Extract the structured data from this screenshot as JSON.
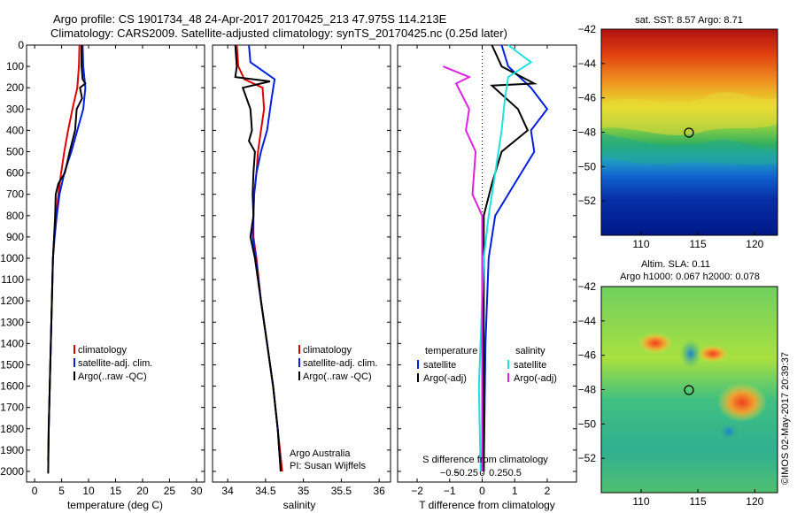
{
  "title_line1": "Argo profile: CS 1901734_48 24-Apr-2017 20170425_213 47.975S 114.213E",
  "title_line2": "Climatology: CARS2009. Satellite-adjusted climatology: synTS_20170425.nc (0.25d later)",
  "sst_title": "sat. SST: 8.57 Argo: 8.71",
  "sla_title1": "Altim. SLA: 0.11",
  "sla_title2": "Argo h1000: 0.067 h2000: 0.078",
  "credit": "©IMOS 02-May-2017 20:39:37",
  "argo_note1": "Argo Australia",
  "argo_note2": "PI: Susan Wijffels",
  "colors": {
    "climatology": "#e00000",
    "satellite": "#0020e0",
    "argo": "#000000",
    "sal_satellite": "#20e0e0",
    "sal_argo": "#e020e0"
  },
  "chart_data": [
    {
      "type": "line",
      "panel": "temperature",
      "xlabel": "temperature (deg C)",
      "ylabel": "",
      "xlim": [
        -1.5,
        31.5
      ],
      "ylim": [
        2050,
        0
      ],
      "xticks": [
        0,
        5,
        10,
        15,
        20,
        25,
        30
      ],
      "yticks": [
        0,
        100,
        200,
        300,
        400,
        500,
        600,
        700,
        800,
        900,
        1000,
        1100,
        1200,
        1300,
        1400,
        1500,
        1600,
        1700,
        1800,
        1900,
        2000
      ],
      "legend": [
        "climatology",
        "satellite-adj. clim.",
        "Argo(..raw -QC)"
      ],
      "series": [
        {
          "name": "climatology",
          "color_key": "climatology",
          "points": [
            [
              8.3,
              0
            ],
            [
              8.2,
              100
            ],
            [
              7.9,
              200
            ],
            [
              7.0,
              300
            ],
            [
              6.2,
              400
            ],
            [
              5.5,
              500
            ],
            [
              4.9,
              600
            ],
            [
              4.4,
              700
            ],
            [
              4.0,
              800
            ],
            [
              3.6,
              900
            ],
            [
              3.4,
              1000
            ],
            [
              3.2,
              1200
            ],
            [
              3.0,
              1400
            ],
            [
              2.8,
              1600
            ],
            [
              2.6,
              1800
            ],
            [
              2.5,
              1950
            ]
          ]
        },
        {
          "name": "satellite-adj. clim.",
          "color_key": "satellite",
          "points": [
            [
              8.9,
              0
            ],
            [
              9.0,
              100
            ],
            [
              9.4,
              200
            ],
            [
              9.0,
              300
            ],
            [
              7.9,
              400
            ],
            [
              6.8,
              500
            ],
            [
              5.5,
              600
            ],
            [
              4.6,
              700
            ],
            [
              4.1,
              800
            ],
            [
              3.7,
              900
            ],
            [
              3.4,
              1000
            ],
            [
              3.2,
              1200
            ],
            [
              3.0,
              1400
            ],
            [
              2.8,
              1600
            ],
            [
              2.6,
              1800
            ],
            [
              2.5,
              1950
            ]
          ]
        },
        {
          "name": "Argo(..raw -QC)",
          "color_key": "argo",
          "points": [
            [
              8.7,
              0
            ],
            [
              8.7,
              100
            ],
            [
              8.9,
              160
            ],
            [
              9.4,
              180
            ],
            [
              8.4,
              200
            ],
            [
              8.8,
              250
            ],
            [
              7.8,
              300
            ],
            [
              7.5,
              400
            ],
            [
              6.5,
              500
            ],
            [
              5.6,
              600
            ],
            [
              4.4,
              650
            ],
            [
              3.9,
              700
            ],
            [
              3.8,
              800
            ],
            [
              3.6,
              900
            ],
            [
              3.4,
              1000
            ],
            [
              3.2,
              1200
            ],
            [
              3.0,
              1400
            ],
            [
              2.8,
              1600
            ],
            [
              2.6,
              1800
            ],
            [
              2.5,
              2010
            ]
          ]
        }
      ]
    },
    {
      "type": "line",
      "panel": "salinity",
      "xlabel": "salinity",
      "ylabel": "",
      "xlim": [
        33.8,
        36.15
      ],
      "ylim": [
        2050,
        0
      ],
      "xticks": [
        34,
        34.5,
        35,
        35.5,
        36
      ],
      "legend": [
        "climatology",
        "satellite-adj. clim.",
        "Argo(..raw -QC)"
      ],
      "series": [
        {
          "name": "climatology",
          "color_key": "climatology",
          "points": [
            [
              34.12,
              0
            ],
            [
              34.14,
              100
            ],
            [
              34.22,
              160
            ],
            [
              34.46,
              200
            ],
            [
              34.48,
              300
            ],
            [
              34.44,
              400
            ],
            [
              34.4,
              500
            ],
            [
              34.38,
              600
            ],
            [
              34.35,
              700
            ],
            [
              34.34,
              800
            ],
            [
              34.34,
              900
            ],
            [
              34.38,
              1000
            ],
            [
              34.44,
              1200
            ],
            [
              34.52,
              1400
            ],
            [
              34.6,
              1600
            ],
            [
              34.66,
              1800
            ],
            [
              34.72,
              2000
            ]
          ]
        },
        {
          "name": "satellite-adj. clim.",
          "color_key": "satellite",
          "points": [
            [
              34.28,
              0
            ],
            [
              34.3,
              80
            ],
            [
              34.62,
              160
            ],
            [
              34.58,
              250
            ],
            [
              34.52,
              400
            ],
            [
              34.44,
              500
            ],
            [
              34.38,
              600
            ],
            [
              34.35,
              700
            ],
            [
              34.34,
              800
            ],
            [
              34.33,
              900
            ],
            [
              34.37,
              1000
            ],
            [
              34.44,
              1200
            ],
            [
              34.52,
              1400
            ],
            [
              34.6,
              1600
            ],
            [
              34.66,
              1800
            ],
            [
              34.7,
              2000
            ]
          ]
        },
        {
          "name": "Argo(..raw -QC)",
          "color_key": "argo",
          "points": [
            [
              34.1,
              0
            ],
            [
              34.12,
              100
            ],
            [
              34.1,
              150
            ],
            [
              34.56,
              170
            ],
            [
              34.2,
              200
            ],
            [
              34.3,
              300
            ],
            [
              34.32,
              400
            ],
            [
              34.28,
              450
            ],
            [
              34.36,
              500
            ],
            [
              34.34,
              600
            ],
            [
              34.33,
              700
            ],
            [
              34.34,
              800
            ],
            [
              34.3,
              900
            ],
            [
              34.36,
              1000
            ],
            [
              34.44,
              1200
            ],
            [
              34.52,
              1400
            ],
            [
              34.6,
              1600
            ],
            [
              34.66,
              1800
            ],
            [
              34.7,
              2000
            ]
          ]
        }
      ]
    },
    {
      "type": "line",
      "panel": "difference",
      "xlabel": "T difference from climatology",
      "x2label": "S difference from climatology",
      "xlim": [
        -2.6,
        2.9
      ],
      "ylim": [
        2050,
        0
      ],
      "xticks": [
        -2,
        -1,
        0,
        1,
        2
      ],
      "x2ticks": [
        -0.5,
        -0.25,
        0,
        0.25,
        0.5
      ],
      "x2ticklabels": [
        "−0.5",
        "−0.25",
        "0",
        "0.25",
        "0.5"
      ],
      "legend_headers": [
        "temperature",
        "salinity"
      ],
      "legend": [
        "satellite",
        "Argo(-adj)",
        "satellite",
        "Argo(-adj)"
      ],
      "series": [
        {
          "name": "satellite",
          "group": "temperature",
          "color_key": "satellite",
          "points": [
            [
              0.6,
              0
            ],
            [
              0.8,
              100
            ],
            [
              1.5,
              200
            ],
            [
              2.0,
              300
            ],
            [
              1.5,
              400
            ],
            [
              1.6,
              500
            ],
            [
              1.0,
              650
            ],
            [
              0.4,
              800
            ],
            [
              0.2,
              1000
            ],
            [
              0.1,
              1400
            ],
            [
              0.05,
              2000
            ]
          ]
        },
        {
          "name": "Argo(-adj)",
          "group": "temperature",
          "color_key": "argo",
          "points": [
            [
              0.3,
              0
            ],
            [
              0.6,
              100
            ],
            [
              1.6,
              180
            ],
            [
              0.3,
              190
            ],
            [
              1.1,
              300
            ],
            [
              1.4,
              400
            ],
            [
              0.6,
              500
            ],
            [
              0.3,
              650
            ],
            [
              0.05,
              800
            ],
            [
              0.05,
              1000
            ],
            [
              0.05,
              2000
            ]
          ]
        },
        {
          "name": "satellite",
          "group": "salinity",
          "color_key": "sal_satellite",
          "points": [
            [
              0.8,
              0
            ],
            [
              1.5,
              80
            ],
            [
              0.8,
              150
            ],
            [
              0.7,
              250
            ],
            [
              0.6,
              400
            ],
            [
              0.4,
              600
            ],
            [
              0.2,
              800
            ],
            [
              0.05,
              1000
            ],
            [
              -0.1,
              1600
            ],
            [
              -0.05,
              2000
            ]
          ]
        },
        {
          "name": "Argo(-adj)",
          "group": "salinity",
          "color_key": "sal_argo",
          "points": [
            [
              -1.2,
              100
            ],
            [
              -0.4,
              150
            ],
            [
              -0.8,
              180
            ],
            [
              -0.4,
              300
            ],
            [
              -0.5,
              400
            ],
            [
              -0.2,
              500
            ],
            [
              -0.3,
              700
            ],
            [
              0.0,
              800
            ],
            [
              0.0,
              1000
            ],
            [
              0.0,
              2000
            ]
          ]
        }
      ]
    },
    {
      "type": "heatmap",
      "panel": "sst_map",
      "title": "sat. SST: 8.57 Argo: 8.71",
      "xlim": [
        106.5,
        122
      ],
      "ylim": [
        -54,
        -42
      ],
      "xticks": [
        110,
        115,
        120
      ],
      "yticks": [
        -42,
        -44,
        -46,
        -48,
        -50,
        -52
      ],
      "ytick_labels": [
        "−42",
        "−44",
        "−46",
        "−48",
        "−50",
        "−52"
      ],
      "marker": {
        "lon": 114.213,
        "lat": -47.975
      }
    },
    {
      "type": "heatmap",
      "panel": "sla_map",
      "title": "Altim. SLA: 0.11",
      "xlim": [
        106.5,
        122
      ],
      "ylim": [
        -54,
        -42
      ],
      "xticks": [
        110,
        115,
        120
      ],
      "yticks": [
        -42,
        -44,
        -46,
        -48,
        -50,
        -52
      ],
      "ytick_labels": [
        "−42",
        "−44",
        "−46",
        "−48",
        "−50",
        "−52"
      ],
      "marker": {
        "lon": 114.213,
        "lat": -47.975
      }
    }
  ]
}
